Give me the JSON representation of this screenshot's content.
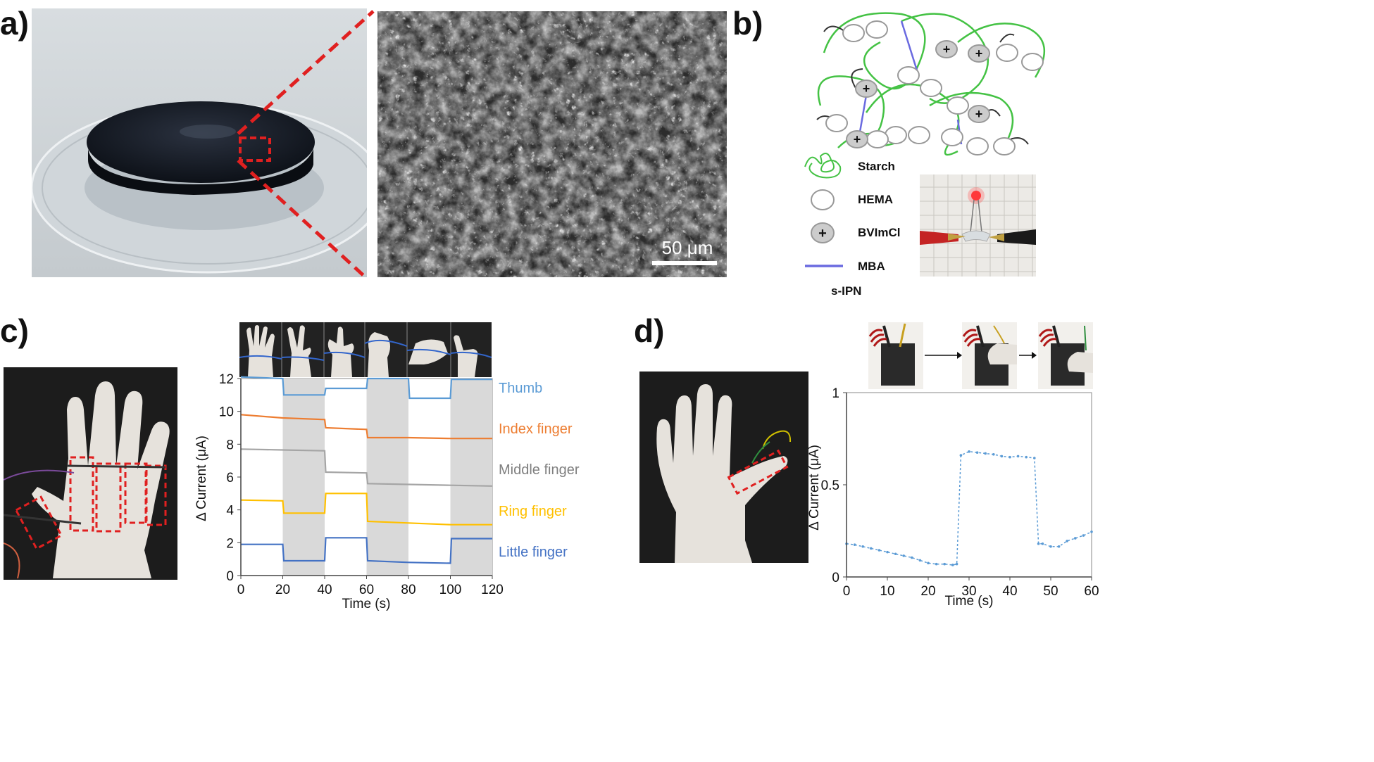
{
  "panels": {
    "a": {
      "label": "a)",
      "scale_bar": "50 μm"
    },
    "b": {
      "label": "b)",
      "legend": [
        {
          "name": "Starch",
          "icon": "starch-coil-icon"
        },
        {
          "name": "HEMA",
          "icon": "open-circle-icon"
        },
        {
          "name": "BVImCl",
          "icon": "plus-circle-icon"
        },
        {
          "name": "MBA",
          "icon": "blue-line-icon"
        }
      ],
      "caption": "s-IPN",
      "plus_symbol": "+"
    },
    "c": {
      "label": "c)"
    },
    "d": {
      "label": "d)"
    }
  },
  "colors": {
    "thumb": "#5b9bd5",
    "index": "#ed7d31",
    "middle": "#a5a5a5",
    "ring": "#ffc000",
    "little": "#4472c4",
    "dashed_red": "#e02020",
    "starch_green": "#44c244",
    "mba_blue": "#6a6ae0"
  },
  "chart_data": [
    {
      "type": "line",
      "panel": "c",
      "xlabel": "Time (s)",
      "ylabel": "Δ Current (μA)",
      "xlim": [
        0,
        120
      ],
      "ylim": [
        0,
        12
      ],
      "xticks": [
        0,
        20,
        40,
        60,
        80,
        100,
        120
      ],
      "yticks": [
        0,
        2,
        4,
        6,
        8,
        10,
        12
      ],
      "shaded_intervals": [
        [
          20,
          40
        ],
        [
          60,
          80
        ],
        [
          100,
          120
        ]
      ],
      "series": [
        {
          "name": "Thumb",
          "color": "#5b9bd5",
          "x": [
            0,
            20,
            20.5,
            40,
            40.5,
            60,
            60.5,
            80,
            80.5,
            100,
            100.5,
            120
          ],
          "y": [
            12.1,
            12.0,
            11.0,
            11.0,
            11.4,
            11.4,
            12.0,
            12.0,
            10.8,
            10.8,
            11.95,
            11.95
          ]
        },
        {
          "name": "Index finger",
          "color": "#ed7d31",
          "x": [
            0,
            20,
            40,
            40.5,
            60,
            60.5,
            80,
            100,
            120
          ],
          "y": [
            9.8,
            9.6,
            9.5,
            9.0,
            8.9,
            8.4,
            8.4,
            8.35,
            8.35
          ]
        },
        {
          "name": "Middle finger",
          "color": "#a5a5a5",
          "x": [
            0,
            20,
            40,
            40.5,
            60,
            60.5,
            80,
            100,
            120
          ],
          "y": [
            7.7,
            7.65,
            7.6,
            6.3,
            6.25,
            5.6,
            5.55,
            5.5,
            5.45
          ]
        },
        {
          "name": "Ring finger",
          "color": "#ffc000",
          "x": [
            0,
            20,
            20.5,
            40,
            40.5,
            60,
            60.5,
            80,
            100,
            120
          ],
          "y": [
            4.6,
            4.55,
            3.8,
            3.8,
            5.0,
            5.0,
            3.3,
            3.2,
            3.1,
            3.1
          ]
        },
        {
          "name": "Little finger",
          "color": "#4472c4",
          "x": [
            0,
            20,
            20.5,
            40,
            40.5,
            60,
            60.5,
            80,
            100,
            100.5,
            120
          ],
          "y": [
            1.9,
            1.9,
            0.9,
            0.9,
            2.3,
            2.3,
            0.9,
            0.8,
            0.75,
            2.25,
            2.25
          ]
        }
      ]
    },
    {
      "type": "line",
      "panel": "d",
      "xlabel": "Time (s)",
      "ylabel": "Δ Current (μA)",
      "xlim": [
        0,
        60
      ],
      "ylim": [
        0,
        1
      ],
      "xticks": [
        0,
        10,
        20,
        30,
        40,
        50,
        60
      ],
      "yticks": [
        0,
        0.5,
        1
      ],
      "ytick_labels": [
        "0",
        "0.5",
        "1"
      ],
      "series": [
        {
          "color": "#5b9bd5",
          "x": [
            0,
            2,
            4,
            6,
            8,
            10,
            12,
            14,
            16,
            18,
            20,
            22,
            24,
            26,
            27,
            28,
            30,
            32,
            34,
            36,
            38,
            40,
            42,
            44,
            46,
            47,
            48,
            50,
            52,
            54,
            56,
            58,
            60
          ],
          "y": [
            0.18,
            0.175,
            0.165,
            0.155,
            0.145,
            0.135,
            0.125,
            0.115,
            0.105,
            0.09,
            0.075,
            0.07,
            0.07,
            0.065,
            0.07,
            0.66,
            0.68,
            0.675,
            0.67,
            0.665,
            0.655,
            0.65,
            0.655,
            0.65,
            0.645,
            0.18,
            0.18,
            0.165,
            0.165,
            0.195,
            0.21,
            0.225,
            0.245
          ]
        }
      ]
    }
  ]
}
